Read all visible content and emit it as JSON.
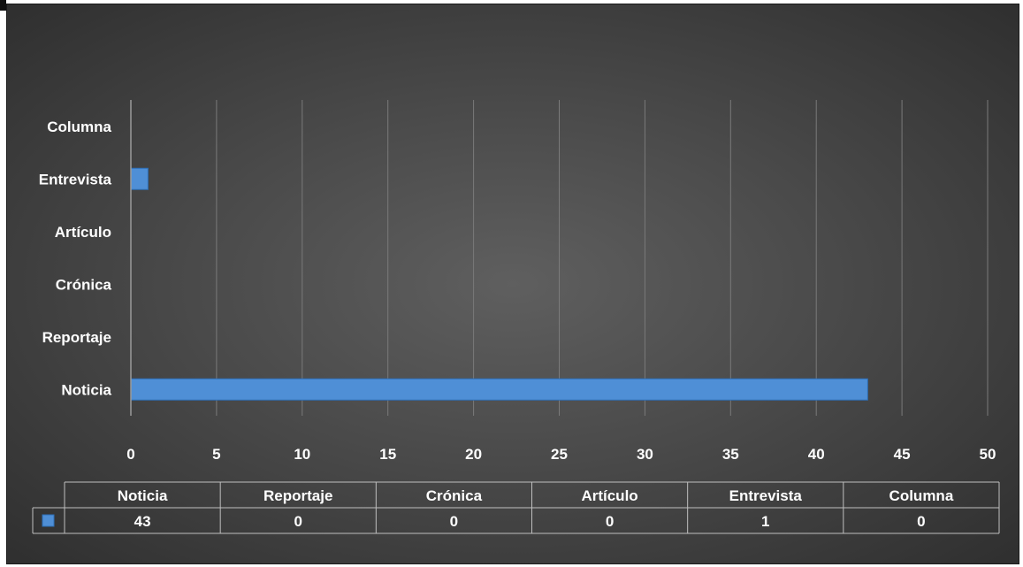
{
  "chart_data": {
    "type": "bar",
    "orientation": "horizontal",
    "categories": [
      "Noticia",
      "Reportaje",
      "Crónica",
      "Artículo",
      "Entrevista",
      "Columna"
    ],
    "series": [
      {
        "values": [
          43,
          0,
          0,
          0,
          1,
          0
        ],
        "color": "#4f8fd6"
      }
    ],
    "xlim": [
      0,
      50
    ],
    "xticks": [
      "0",
      "5",
      "10",
      "15",
      "20",
      "25",
      "30",
      "35",
      "40",
      "45",
      "50"
    ],
    "title": "",
    "xlabel": "",
    "ylabel": "",
    "grid": true,
    "data_table": {
      "headers": [
        "Noticia",
        "Reportaje",
        "Crónica",
        "Artículo",
        "Entrevista",
        "Columna"
      ],
      "values": [
        "43",
        "0",
        "0",
        "0",
        "1",
        "0"
      ]
    }
  },
  "colors": {
    "background": "#4a4a4a",
    "bar": "#4f8fd6",
    "gridline": "#7a7a7a",
    "text": "#ffffff"
  }
}
